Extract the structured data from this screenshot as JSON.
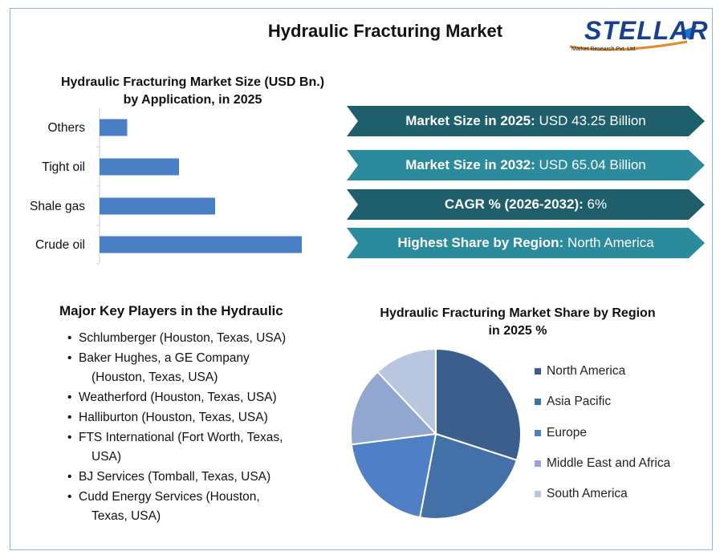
{
  "header": {
    "title": "Hydraulic Fracturing Market",
    "logo_text": "STELLAR",
    "logo_subtext": "Market Research Pvt. Ltd."
  },
  "bar_chart": {
    "title": "Hydraulic Fracturing Market Size (USD Bn.) by Application, in 2025",
    "bar_color": "#4a7ec5"
  },
  "banners": [
    {
      "label": "Market Size in 2025:",
      "value": " USD 43.25 Billion",
      "color": "#1f5f6b"
    },
    {
      "label": "Market Size in 2032:",
      "value": " USD 65.04 Billion",
      "color": "#2b8a9b"
    },
    {
      "label": "CAGR % (2026-2032):",
      "value": " 6%",
      "color": "#1f5f6b"
    },
    {
      "label": "Highest Share by Region:",
      "value": " North America",
      "color": "#2b8a9b"
    }
  ],
  "players": {
    "title": "Major Key Players in the Hydraulic",
    "items": [
      {
        "main": "Schlumberger (Houston, Texas, USA)",
        "cont": ""
      },
      {
        "main": "Baker Hughes, a GE Company",
        "cont": "(Houston, Texas, USA)"
      },
      {
        "main": "Weatherford (Houston, Texas, USA)",
        "cont": ""
      },
      {
        "main": "Halliburton (Houston, Texas, USA)",
        "cont": ""
      },
      {
        "main": "FTS International (Fort Worth, Texas,",
        "cont": "USA)"
      },
      {
        "main": "BJ Services (Tomball, Texas, USA)",
        "cont": ""
      },
      {
        "main": "Cudd Energy Services (Houston,",
        "cont": "Texas, USA)"
      }
    ]
  },
  "pie_chart": {
    "title": "Hydraulic Fracturing  Market Share by Region in 2025 %"
  },
  "chart_data": [
    {
      "type": "bar",
      "orientation": "horizontal",
      "title": "Hydraulic Fracturing Market Size (USD Bn.) by Application, in 2025",
      "categories": [
        "Crude oil",
        "Shale gas",
        "Tight oil",
        "Others"
      ],
      "values": [
        16.8,
        9.6,
        6.6,
        2.3
      ],
      "xlim": [
        0,
        18
      ],
      "grid": false
    },
    {
      "type": "pie",
      "title": "Hydraulic Fracturing  Market Share by Region in 2025 %",
      "labels": [
        "North America",
        "Asia Pacific",
        "Europe",
        "Middle East and Africa",
        "South America"
      ],
      "values": [
        30,
        23,
        20,
        15,
        12
      ],
      "colors": [
        "#3b5e8c",
        "#4470a8",
        "#4f7fc4",
        "#91a7cf",
        "#b9c6e0"
      ],
      "legend": "right"
    }
  ]
}
